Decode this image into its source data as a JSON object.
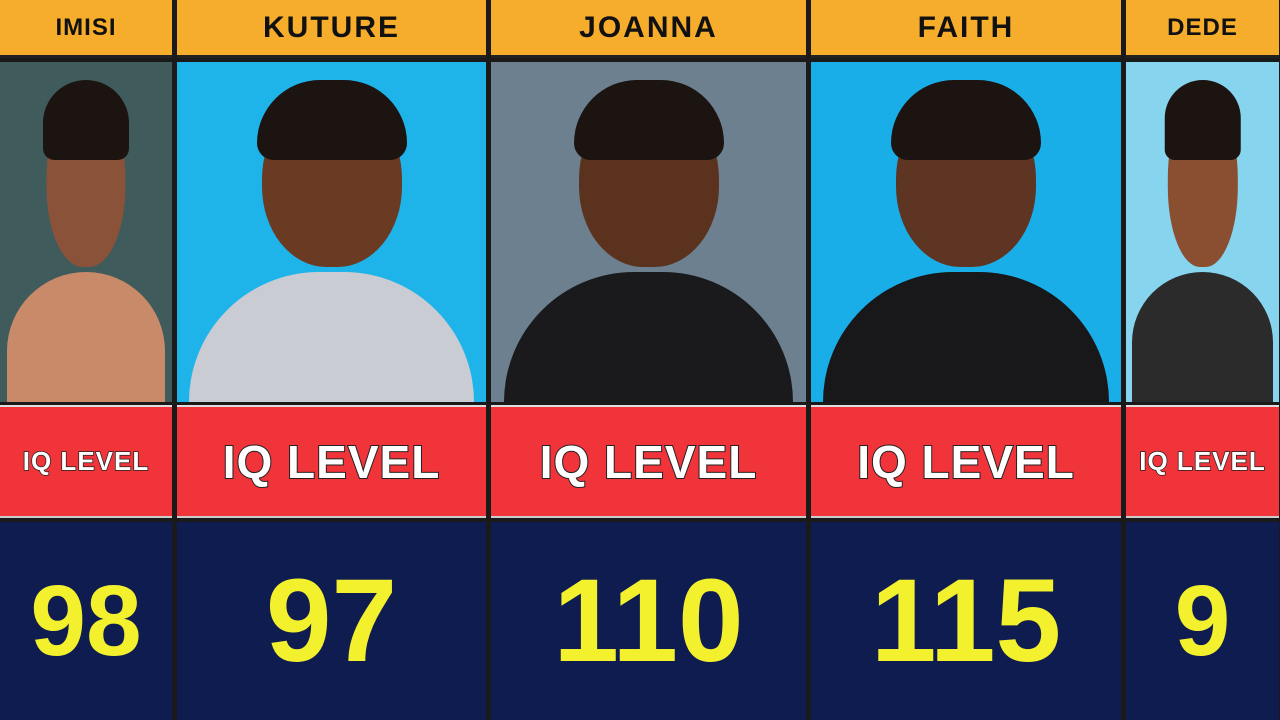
{
  "cards": [
    {
      "name": "IMISI",
      "label": "IQ LEVEL",
      "iq": "98",
      "bg": "#3f5b5b",
      "skin": "#8a5238",
      "cloth": "#c98a6a"
    },
    {
      "name": "KUTURE",
      "label": "IQ LEVEL",
      "iq": "97",
      "bg": "#1eb4ea",
      "skin": "#6b3a22",
      "cloth": "#c9ccd2"
    },
    {
      "name": "JOANNA",
      "label": "IQ LEVEL",
      "iq": "110",
      "bg": "#6c8090",
      "skin": "#5a321e",
      "cloth": "#1a1a1c"
    },
    {
      "name": "FAITH",
      "label": "IQ LEVEL",
      "iq": "115",
      "bg": "#1aaee8",
      "skin": "#5e3522",
      "cloth": "#18181a"
    },
    {
      "name": "DEDE",
      "label": "IQ LEVEL",
      "iq": "9",
      "bg": "#86d4ee",
      "skin": "#8a4e30",
      "cloth": "#2b2b2b"
    }
  ]
}
